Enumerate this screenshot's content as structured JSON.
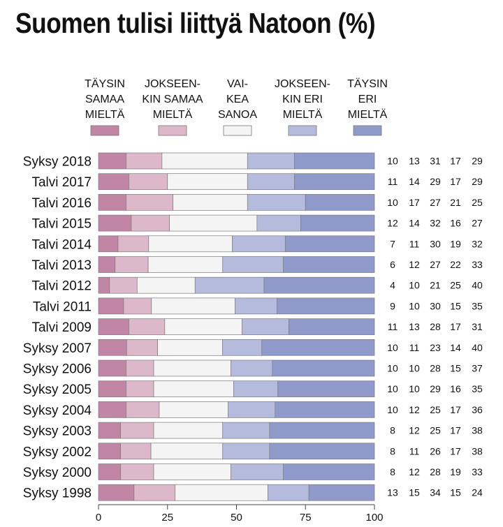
{
  "title": "Suomen tulisi liittyä Natoon (%)",
  "chart_data": {
    "type": "bar",
    "stacked": true,
    "orientation": "horizontal",
    "title": "Suomen tulisi liittyä Natoon (%)",
    "xlim": [
      0,
      100
    ],
    "xticks": [
      0,
      25,
      50,
      75,
      100
    ],
    "legend_position": "top",
    "categories": [
      "Syksy 2018",
      "Talvi 2017",
      "Talvi 2016",
      "Talvi 2015",
      "Talvi 2014",
      "Talvi 2013",
      "Talvi 2012",
      "Talvi 2011",
      "Talvi 2009",
      "Syksy 2007",
      "Syksy 2006",
      "Syksy 2005",
      "Syksy 2004",
      "Syksy 2003",
      "Syksy 2002",
      "Syksy 2000",
      "Syksy 1998"
    ],
    "series": [
      {
        "name": "TÄYSIN SAMAA MIELTÄ",
        "lines": [
          "TÄYSIN",
          "SAMAA",
          "MIELTÄ"
        ],
        "color": "#c185a5",
        "values": [
          10,
          11,
          10,
          12,
          7,
          6,
          4,
          9,
          11,
          10,
          10,
          10,
          10,
          8,
          8,
          8,
          13
        ]
      },
      {
        "name": "JOKSEEN-KIN SAMAA MIELTÄ",
        "lines": [
          "JOKSEEN-",
          "KIN SAMAA",
          "MIELTÄ"
        ],
        "color": "#dcb8ca",
        "values": [
          13,
          14,
          17,
          14,
          11,
          12,
          10,
          10,
          13,
          11,
          10,
          10,
          12,
          12,
          11,
          12,
          15
        ]
      },
      {
        "name": "VAI-KEA SANOA",
        "lines": [
          "VAI-",
          "KEA",
          "SANOA"
        ],
        "color": "#f4f4f4",
        "values": [
          31,
          29,
          27,
          32,
          30,
          27,
          21,
          30,
          28,
          23,
          28,
          29,
          25,
          25,
          26,
          28,
          34
        ]
      },
      {
        "name": "JOKSEEN-KIN ERI MIELTÄ",
        "lines": [
          "JOKSEEN-",
          "KIN ERI",
          "MIELTÄ"
        ],
        "color": "#b5bbdd",
        "values": [
          17,
          17,
          21,
          16,
          19,
          22,
          25,
          15,
          17,
          14,
          15,
          16,
          17,
          17,
          17,
          19,
          15
        ]
      },
      {
        "name": "TÄYSIN ERI MIELTÄ",
        "lines": [
          "TÄYSIN",
          "ERI",
          "MIELTÄ"
        ],
        "color": "#8f9acb",
        "values": [
          29,
          29,
          25,
          27,
          32,
          33,
          40,
          35,
          31,
          40,
          37,
          35,
          36,
          38,
          38,
          33,
          24
        ]
      }
    ]
  }
}
